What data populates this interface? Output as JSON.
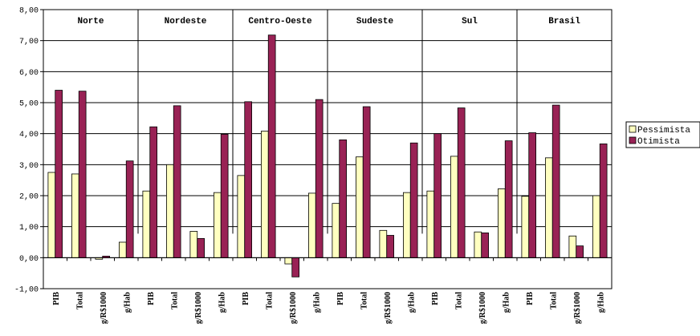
{
  "chart_data": {
    "type": "bar",
    "ylim": [
      -1,
      8
    ],
    "y_ticks": [
      "-1,00",
      "0,00",
      "1,00",
      "2,00",
      "3,00",
      "4,00",
      "5,00",
      "6,00",
      "7,00",
      "8,00"
    ],
    "y_tick_values": [
      -1,
      0,
      1,
      2,
      3,
      4,
      5,
      6,
      7,
      8
    ],
    "regions": [
      "Norte",
      "Nordeste",
      "Centro-Oeste",
      "Sudeste",
      "Sul",
      "Brasil"
    ],
    "categories": [
      "PIB",
      "Total",
      "g/R$1000",
      "g/Hab",
      "PIB",
      "Total",
      "g/R$1000",
      "g/Hab",
      "PIB",
      "Total",
      "g/R$1000",
      "g/Hab",
      "PIB",
      "Total",
      "g/R$1000",
      "g/Hab",
      "PIB",
      "Total",
      "g/R$1000",
      "g/Hab",
      "PIB",
      "Total",
      "g/R$1000",
      "g/Hab"
    ],
    "series": [
      {
        "name": "Pessimista",
        "color": "#ffffc0",
        "values": [
          2.75,
          2.7,
          -0.05,
          0.5,
          2.15,
          3.0,
          0.85,
          2.1,
          2.65,
          4.08,
          -0.2,
          2.08,
          1.75,
          3.25,
          0.88,
          2.1,
          2.15,
          3.27,
          0.83,
          2.22,
          1.98,
          3.22,
          0.7,
          2.0
        ]
      },
      {
        "name": "Otimista",
        "color": "#992255",
        "values": [
          5.4,
          5.37,
          0.05,
          3.12,
          4.22,
          4.9,
          0.62,
          3.98,
          5.03,
          7.18,
          -0.62,
          5.1,
          3.8,
          4.87,
          0.72,
          3.7,
          4.0,
          4.83,
          0.8,
          3.77,
          4.03,
          4.92,
          0.38,
          3.67
        ]
      }
    ],
    "legend_position": "right",
    "grid": true
  }
}
